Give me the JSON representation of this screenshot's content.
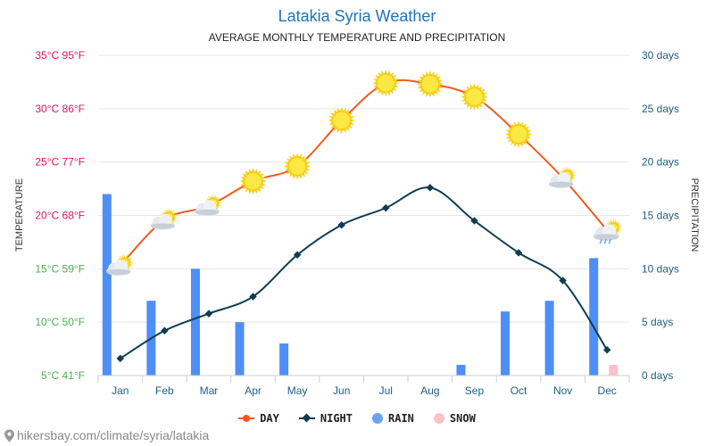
{
  "chart_data": {
    "type": "line",
    "title": "Latakia Syria Weather",
    "subtitle": "AVERAGE MONTHLY TEMPERATURE AND PRECIPITATION",
    "categories": [
      "Jan",
      "Feb",
      "Mar",
      "Apr",
      "May",
      "Jun",
      "Jul",
      "Aug",
      "Sep",
      "Oct",
      "Nov",
      "Dec"
    ],
    "series": [
      {
        "name": "DAY",
        "axis": "left",
        "color": "#ef5b1f",
        "values": [
          15.3,
          19.6,
          20.9,
          23.2,
          24.6,
          28.9,
          32.4,
          32.3,
          31.1,
          27.6,
          23.5,
          18.6
        ]
      },
      {
        "name": "NIGHT",
        "axis": "left",
        "color": "#0e3d52",
        "values": [
          6.6,
          9.2,
          10.8,
          12.4,
          16.3,
          19.1,
          20.7,
          22.6,
          19.5,
          16.5,
          13.9,
          7.4
        ]
      },
      {
        "name": "RAIN",
        "axis": "right",
        "color": "#4e8ef7",
        "values": [
          17,
          7,
          10,
          5,
          3,
          0,
          0,
          0,
          1,
          6,
          7,
          11
        ]
      },
      {
        "name": "SNOW",
        "axis": "right",
        "color": "#ffc0cb",
        "values": [
          0,
          0,
          0,
          0,
          0,
          0,
          0,
          0,
          0,
          0,
          0,
          1
        ]
      }
    ],
    "y_left": {
      "label": "TEMPERATURE",
      "ylim": [
        5,
        35
      ],
      "ticks": [
        "5°C 41°F",
        "10°C 50°F",
        "15°C 59°F",
        "20°C 68°F",
        "25°C 77°F",
        "30°C 86°F",
        "35°C 95°F"
      ]
    },
    "y_right": {
      "label": "PRECIPITATION",
      "ylim": [
        0,
        30
      ],
      "ticks": [
        "0 days",
        "5 days",
        "10 days",
        "15 days",
        "20 days",
        "25 days",
        "30 days"
      ]
    },
    "weather_icons": [
      "sun-cloud-icon",
      "sun-cloud-icon",
      "sun-cloud-icon",
      "sun-icon",
      "sun-icon",
      "sun-icon",
      "sun-icon",
      "sun-icon",
      "sun-icon",
      "sun-icon",
      "sun-cloud-icon",
      "cloud-rain-icon"
    ],
    "legend": [
      "DAY",
      "NIGHT",
      "RAIN",
      "SNOW"
    ]
  },
  "colors": {
    "title": "#1f74b5",
    "grid": "#e6e6e6",
    "right_axis": "#1f5f86",
    "tick_cold": "#4caf50",
    "tick_hot": "#e0175b"
  },
  "source": "hikersbay.com/climate/syria/latakia"
}
